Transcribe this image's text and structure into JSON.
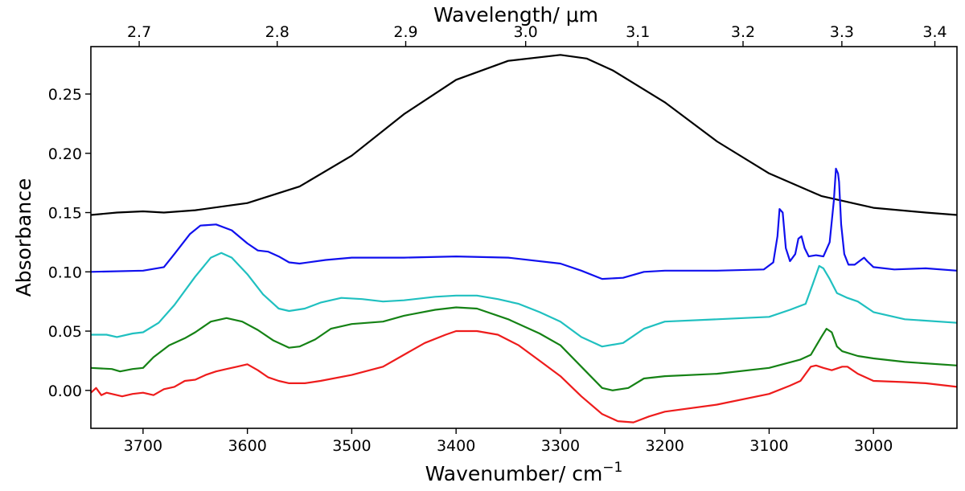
{
  "chart_data": {
    "type": "line",
    "xlabel": "Wavenumber/ cm",
    "xlabel_superscript": "−1",
    "x2label": "Wavelength/ μm",
    "ylabel": "Absorbance",
    "xlim": [
      3750,
      2920
    ],
    "ylim": [
      -0.032,
      0.29
    ],
    "x_reversed": true,
    "grid": false,
    "legend": "none",
    "x_ticks": [
      3700,
      3600,
      3500,
      3400,
      3300,
      3200,
      3100,
      3000
    ],
    "x_tick_labels": [
      "3700",
      "3600",
      "3500",
      "3400",
      "3300",
      "3200",
      "3100",
      "3000"
    ],
    "y_ticks": [
      0.0,
      0.05,
      0.1,
      0.15,
      0.2,
      0.25
    ],
    "y_tick_labels": [
      "0.00",
      "0.05",
      "0.10",
      "0.15",
      "0.20",
      "0.25"
    ],
    "x2_ticks": [
      2.7,
      2.8,
      2.9,
      3.0,
      3.1,
      3.2,
      3.3,
      3.4
    ],
    "x2_tick_labels": [
      "2.7",
      "2.8",
      "2.9",
      "3.0",
      "3.1",
      "3.2",
      "3.3",
      "3.4"
    ],
    "series": [
      {
        "color": "#000000",
        "points": [
          [
            3750,
            0.148
          ],
          [
            3725,
            0.15
          ],
          [
            3700,
            0.151
          ],
          [
            3680,
            0.15
          ],
          [
            3650,
            0.152
          ],
          [
            3600,
            0.158
          ],
          [
            3550,
            0.172
          ],
          [
            3500,
            0.198
          ],
          [
            3450,
            0.233
          ],
          [
            3400,
            0.262
          ],
          [
            3350,
            0.278
          ],
          [
            3300,
            0.283
          ],
          [
            3275,
            0.28
          ],
          [
            3250,
            0.27
          ],
          [
            3200,
            0.243
          ],
          [
            3150,
            0.21
          ],
          [
            3100,
            0.183
          ],
          [
            3050,
            0.164
          ],
          [
            3000,
            0.154
          ],
          [
            2950,
            0.15
          ],
          [
            2920,
            0.148
          ]
        ]
      },
      {
        "color": "#1010ee",
        "points": [
          [
            3750,
            0.1
          ],
          [
            3700,
            0.101
          ],
          [
            3680,
            0.104
          ],
          [
            3670,
            0.115
          ],
          [
            3655,
            0.132
          ],
          [
            3645,
            0.139
          ],
          [
            3630,
            0.14
          ],
          [
            3615,
            0.135
          ],
          [
            3600,
            0.124
          ],
          [
            3590,
            0.118
          ],
          [
            3580,
            0.117
          ],
          [
            3570,
            0.113
          ],
          [
            3560,
            0.108
          ],
          [
            3550,
            0.107
          ],
          [
            3525,
            0.11
          ],
          [
            3500,
            0.112
          ],
          [
            3450,
            0.112
          ],
          [
            3400,
            0.113
          ],
          [
            3350,
            0.112
          ],
          [
            3300,
            0.107
          ],
          [
            3280,
            0.101
          ],
          [
            3260,
            0.094
          ],
          [
            3240,
            0.095
          ],
          [
            3220,
            0.1
          ],
          [
            3200,
            0.101
          ],
          [
            3150,
            0.101
          ],
          [
            3105,
            0.102
          ],
          [
            3096,
            0.108
          ],
          [
            3092,
            0.13
          ],
          [
            3090,
            0.153
          ],
          [
            3087,
            0.15
          ],
          [
            3084,
            0.12
          ],
          [
            3080,
            0.109
          ],
          [
            3075,
            0.115
          ],
          [
            3072,
            0.128
          ],
          [
            3069,
            0.13
          ],
          [
            3066,
            0.12
          ],
          [
            3062,
            0.113
          ],
          [
            3055,
            0.114
          ],
          [
            3048,
            0.113
          ],
          [
            3042,
            0.125
          ],
          [
            3038,
            0.16
          ],
          [
            3036,
            0.187
          ],
          [
            3034,
            0.183
          ],
          [
            3033,
            0.176
          ],
          [
            3031,
            0.14
          ],
          [
            3028,
            0.115
          ],
          [
            3024,
            0.106
          ],
          [
            3018,
            0.106
          ],
          [
            3012,
            0.11
          ],
          [
            3009,
            0.112
          ],
          [
            3006,
            0.109
          ],
          [
            3000,
            0.104
          ],
          [
            2980,
            0.102
          ],
          [
            2950,
            0.103
          ],
          [
            2920,
            0.101
          ]
        ]
      },
      {
        "color": "#20c0c0",
        "points": [
          [
            3750,
            0.047
          ],
          [
            3735,
            0.047
          ],
          [
            3725,
            0.045
          ],
          [
            3710,
            0.048
          ],
          [
            3700,
            0.049
          ],
          [
            3685,
            0.057
          ],
          [
            3670,
            0.072
          ],
          [
            3650,
            0.096
          ],
          [
            3635,
            0.112
          ],
          [
            3625,
            0.116
          ],
          [
            3615,
            0.112
          ],
          [
            3600,
            0.098
          ],
          [
            3585,
            0.081
          ],
          [
            3570,
            0.069
          ],
          [
            3560,
            0.067
          ],
          [
            3545,
            0.069
          ],
          [
            3530,
            0.074
          ],
          [
            3510,
            0.078
          ],
          [
            3490,
            0.077
          ],
          [
            3470,
            0.075
          ],
          [
            3450,
            0.076
          ],
          [
            3420,
            0.079
          ],
          [
            3400,
            0.08
          ],
          [
            3380,
            0.08
          ],
          [
            3360,
            0.077
          ],
          [
            3340,
            0.073
          ],
          [
            3320,
            0.066
          ],
          [
            3300,
            0.058
          ],
          [
            3280,
            0.045
          ],
          [
            3260,
            0.037
          ],
          [
            3240,
            0.04
          ],
          [
            3220,
            0.052
          ],
          [
            3200,
            0.058
          ],
          [
            3150,
            0.06
          ],
          [
            3100,
            0.062
          ],
          [
            3080,
            0.068
          ],
          [
            3065,
            0.073
          ],
          [
            3058,
            0.09
          ],
          [
            3052,
            0.105
          ],
          [
            3048,
            0.103
          ],
          [
            3042,
            0.094
          ],
          [
            3035,
            0.082
          ],
          [
            3025,
            0.078
          ],
          [
            3015,
            0.075
          ],
          [
            3000,
            0.066
          ],
          [
            2970,
            0.06
          ],
          [
            2920,
            0.057
          ]
        ]
      },
      {
        "color": "#158215",
        "points": [
          [
            3750,
            0.019
          ],
          [
            3730,
            0.018
          ],
          [
            3722,
            0.016
          ],
          [
            3710,
            0.018
          ],
          [
            3700,
            0.019
          ],
          [
            3690,
            0.028
          ],
          [
            3675,
            0.038
          ],
          [
            3660,
            0.044
          ],
          [
            3650,
            0.049
          ],
          [
            3635,
            0.058
          ],
          [
            3620,
            0.061
          ],
          [
            3605,
            0.058
          ],
          [
            3590,
            0.051
          ],
          [
            3575,
            0.042
          ],
          [
            3560,
            0.036
          ],
          [
            3550,
            0.037
          ],
          [
            3535,
            0.043
          ],
          [
            3520,
            0.052
          ],
          [
            3500,
            0.056
          ],
          [
            3470,
            0.058
          ],
          [
            3450,
            0.063
          ],
          [
            3420,
            0.068
          ],
          [
            3400,
            0.07
          ],
          [
            3380,
            0.069
          ],
          [
            3350,
            0.06
          ],
          [
            3320,
            0.048
          ],
          [
            3300,
            0.038
          ],
          [
            3280,
            0.02
          ],
          [
            3260,
            0.002
          ],
          [
            3250,
            0.0
          ],
          [
            3235,
            0.002
          ],
          [
            3220,
            0.01
          ],
          [
            3200,
            0.012
          ],
          [
            3150,
            0.014
          ],
          [
            3100,
            0.019
          ],
          [
            3070,
            0.026
          ],
          [
            3060,
            0.03
          ],
          [
            3050,
            0.045
          ],
          [
            3045,
            0.052
          ],
          [
            3040,
            0.049
          ],
          [
            3035,
            0.037
          ],
          [
            3030,
            0.033
          ],
          [
            3015,
            0.029
          ],
          [
            3000,
            0.027
          ],
          [
            2970,
            0.024
          ],
          [
            2920,
            0.021
          ]
        ]
      },
      {
        "color": "#ee1c1c",
        "points": [
          [
            3750,
            -0.002
          ],
          [
            3745,
            0.002
          ],
          [
            3740,
            -0.004
          ],
          [
            3735,
            -0.002
          ],
          [
            3730,
            -0.003
          ],
          [
            3720,
            -0.005
          ],
          [
            3710,
            -0.003
          ],
          [
            3700,
            -0.002
          ],
          [
            3690,
            -0.004
          ],
          [
            3680,
            0.001
          ],
          [
            3670,
            0.003
          ],
          [
            3660,
            0.008
          ],
          [
            3650,
            0.009
          ],
          [
            3640,
            0.013
          ],
          [
            3630,
            0.016
          ],
          [
            3620,
            0.018
          ],
          [
            3610,
            0.02
          ],
          [
            3600,
            0.022
          ],
          [
            3590,
            0.017
          ],
          [
            3580,
            0.011
          ],
          [
            3570,
            0.008
          ],
          [
            3560,
            0.006
          ],
          [
            3545,
            0.006
          ],
          [
            3530,
            0.008
          ],
          [
            3500,
            0.013
          ],
          [
            3470,
            0.02
          ],
          [
            3450,
            0.03
          ],
          [
            3430,
            0.04
          ],
          [
            3410,
            0.047
          ],
          [
            3400,
            0.05
          ],
          [
            3380,
            0.05
          ],
          [
            3360,
            0.047
          ],
          [
            3340,
            0.038
          ],
          [
            3320,
            0.025
          ],
          [
            3300,
            0.012
          ],
          [
            3280,
            -0.005
          ],
          [
            3260,
            -0.02
          ],
          [
            3245,
            -0.026
          ],
          [
            3230,
            -0.027
          ],
          [
            3215,
            -0.022
          ],
          [
            3200,
            -0.018
          ],
          [
            3150,
            -0.012
          ],
          [
            3100,
            -0.003
          ],
          [
            3080,
            0.004
          ],
          [
            3070,
            0.008
          ],
          [
            3060,
            0.02
          ],
          [
            3055,
            0.021
          ],
          [
            3048,
            0.019
          ],
          [
            3040,
            0.017
          ],
          [
            3030,
            0.02
          ],
          [
            3025,
            0.02
          ],
          [
            3015,
            0.014
          ],
          [
            3000,
            0.008
          ],
          [
            2970,
            0.007
          ],
          [
            2950,
            0.006
          ],
          [
            2920,
            0.003
          ]
        ]
      }
    ]
  }
}
